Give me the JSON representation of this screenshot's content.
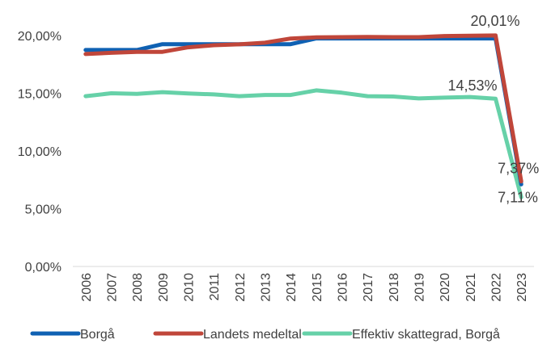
{
  "chart_data": {
    "type": "line",
    "title": "",
    "xlabel": "",
    "ylabel": "",
    "x": [
      "2006",
      "2007",
      "2008",
      "2009",
      "2010",
      "2011",
      "2012",
      "2013",
      "2014",
      "2015",
      "2016",
      "2017",
      "2018",
      "2019",
      "2020",
      "2021",
      "2022",
      "2023"
    ],
    "ylim": [
      0,
      20
    ],
    "y_ticks": [
      {
        "value": 0,
        "label": "0,00%"
      },
      {
        "value": 5,
        "label": "5,00%"
      },
      {
        "value": 10,
        "label": "10,00%"
      },
      {
        "value": 15,
        "label": "15,00%"
      },
      {
        "value": 20,
        "label": "20,00%"
      }
    ],
    "grid": false,
    "legend_position": "bottom",
    "series": [
      {
        "name": "Borgå",
        "color": "#0f61b3",
        "values": [
          18.75,
          18.75,
          18.75,
          19.25,
          19.25,
          19.25,
          19.25,
          19.25,
          19.25,
          19.75,
          19.75,
          19.75,
          19.75,
          19.75,
          19.75,
          19.75,
          19.75,
          7.11
        ]
      },
      {
        "name": "Landets medeltal",
        "color": "#c0463a",
        "values": [
          18.4,
          18.5,
          18.59,
          18.59,
          18.98,
          19.16,
          19.24,
          19.38,
          19.74,
          19.84,
          19.86,
          19.88,
          19.86,
          19.86,
          19.96,
          19.98,
          20.01,
          7.37
        ]
      },
      {
        "name": "Effektiv skattegrad, Borgå",
        "color": "#66d1a8",
        "values": [
          14.75,
          15.0,
          14.95,
          15.1,
          14.98,
          14.9,
          14.75,
          14.85,
          14.85,
          15.25,
          15.05,
          14.75,
          14.72,
          14.55,
          14.62,
          14.68,
          14.53,
          6.0
        ]
      }
    ],
    "annotations": [
      {
        "label": "20,01%",
        "series": 1,
        "index": 16
      },
      {
        "label": "14,53%",
        "series": 2,
        "index": 16
      },
      {
        "label": "7,37%",
        "series": 1,
        "index": 17
      },
      {
        "label": "7,11%",
        "series": 0,
        "index": 17
      }
    ]
  }
}
